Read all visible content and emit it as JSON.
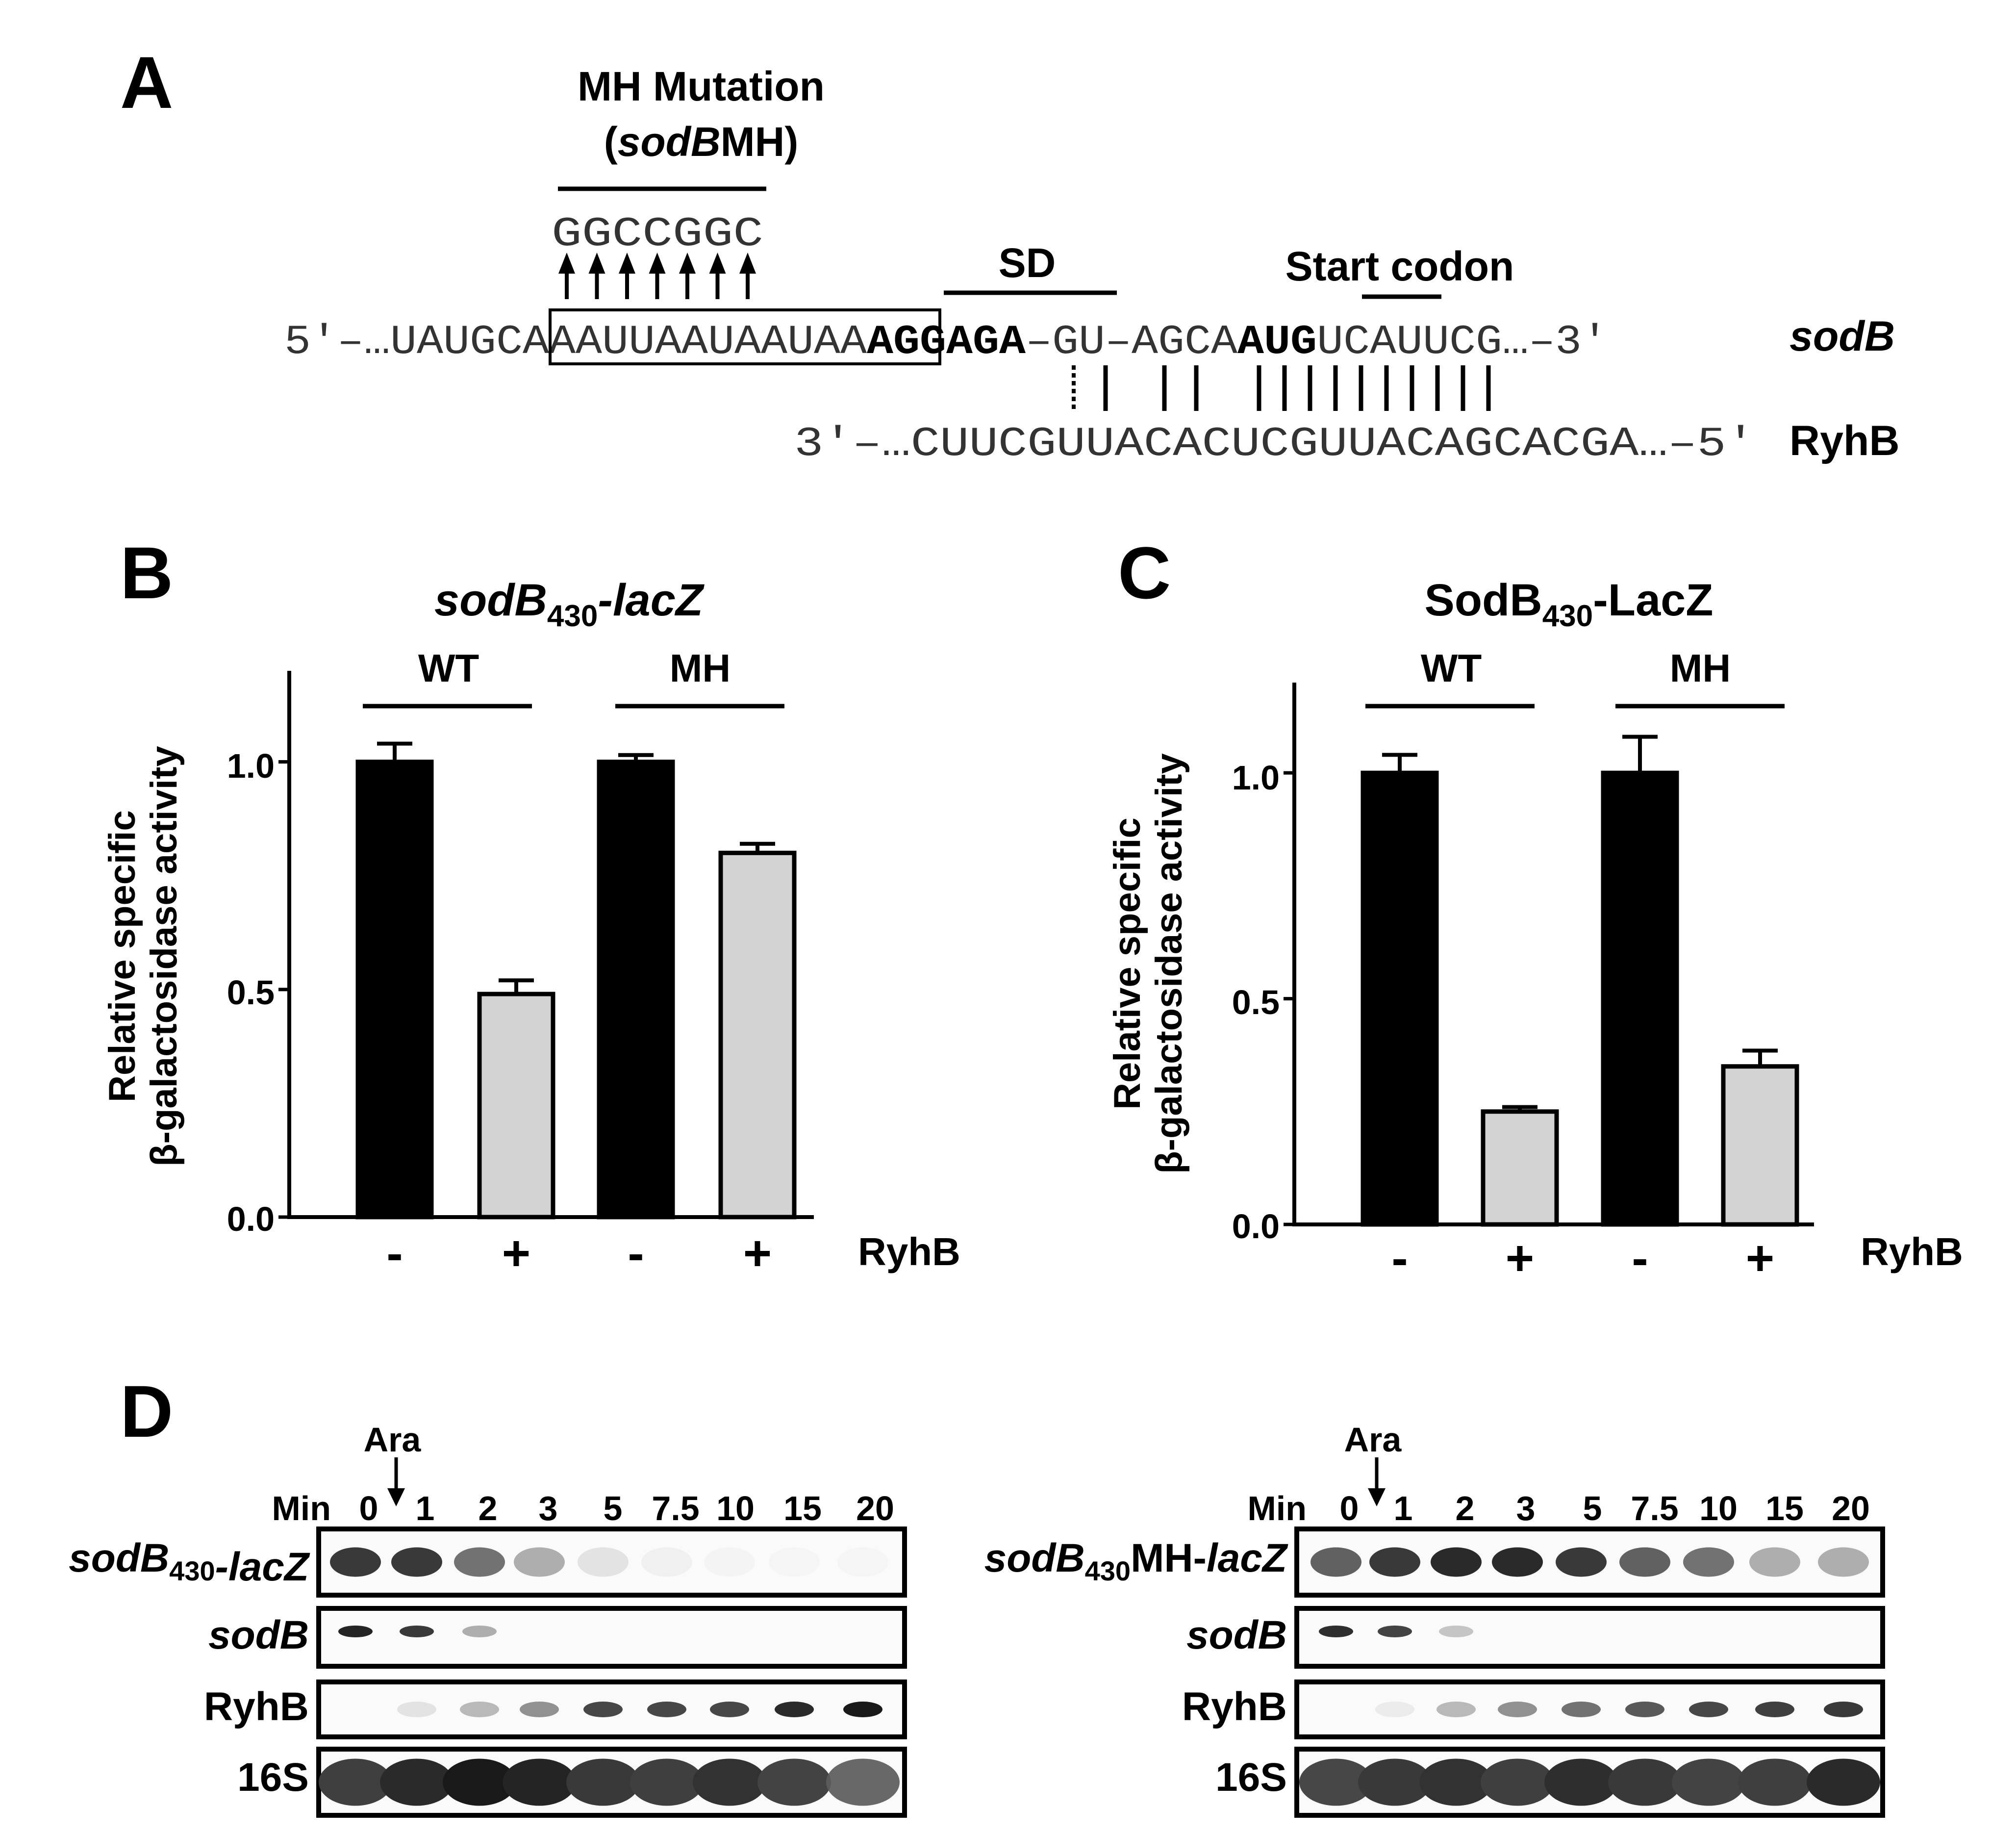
{
  "panels": {
    "A": {
      "letter": "A",
      "mutation_title_line1": "MH Mutation",
      "mutation_title_line2_italic": "sodB",
      "mutation_title_line2_rest": "MH",
      "mutation_title_paren_open": "(",
      "mutation_title_paren_close": ")",
      "mutation_bases": "GGCCGGC",
      "sd_label": "SD",
      "start_codon_label": "Start codon",
      "sodB_seq": {
        "prefix": "5′–…UAUGC",
        "boxed": "AAAUUAAUAAUAA",
        "sd": "AGGAGA",
        "mid": "–GU–AGCA",
        "start": "AUG",
        "suffix": "UCAUUCG…–3′"
      },
      "sodB_name": "sodB",
      "ryhB_seq": "3′–…CUUCGUUACACUCGUUACAGCACGA…–5′",
      "ryhB_name": "RyhB"
    },
    "B": {
      "letter": "B",
      "title_italic": "sodB",
      "title_sub": "430",
      "title_suffix": "-lacZ",
      "group_labels": [
        "WT",
        "MH"
      ],
      "ylabel_line1": "Relative specific",
      "ylabel_line2": "β-galactosidase activity",
      "ticks": [
        "0.0",
        "0.5",
        "1.0"
      ],
      "signs": [
        "-",
        "+",
        "-",
        "+"
      ],
      "ryhb_label": "RyhB"
    },
    "C": {
      "letter": "C",
      "title_main": "SodB",
      "title_sub": "430",
      "title_suffix": "-LacZ",
      "group_labels": [
        "WT",
        "MH"
      ],
      "ylabel_line1": "Relative specific",
      "ylabel_line2": "β-galactosidase activity",
      "ticks": [
        "0.0",
        "0.5",
        "1.0"
      ],
      "signs": [
        "-",
        "+",
        "-",
        "+"
      ],
      "ryhb_label": "RyhB"
    },
    "D": {
      "letter": "D",
      "ara_label": "Ara",
      "min_label": "Min",
      "time_points": [
        "0",
        "1",
        "2",
        "3",
        "5",
        "7.5",
        "10",
        "15",
        "20"
      ],
      "left": {
        "row1": {
          "italic": "sodB",
          "sub": "430",
          "mid": "",
          "tail": "-lacZ"
        },
        "rows": [
          "sodB",
          "RyhB",
          "16S"
        ],
        "intensities": {
          "reporter": [
            0.85,
            0.85,
            0.65,
            0.45,
            0.18,
            0.07,
            0.03,
            0.02,
            0.02
          ],
          "sodB": [
            0.95,
            0.85,
            0.45,
            0.0,
            0.0,
            0.0,
            0.0,
            0.0,
            0.0
          ],
          "ryhB": [
            0.0,
            0.18,
            0.4,
            0.55,
            0.78,
            0.78,
            0.78,
            0.92,
            1.0
          ],
          "s16": [
            0.82,
            0.92,
            1.0,
            0.95,
            0.85,
            0.82,
            0.88,
            0.8,
            0.68
          ]
        }
      },
      "right": {
        "row1": {
          "italic": "sodB",
          "sub": "430",
          "mid": "MH-",
          "tail": "lacZ"
        },
        "rows": [
          "sodB",
          "RyhB",
          "16S"
        ],
        "intensities": {
          "reporter": [
            0.7,
            0.85,
            0.92,
            0.92,
            0.85,
            0.7,
            0.65,
            0.45,
            0.45
          ],
          "sodB": [
            0.9,
            0.8,
            0.35,
            0.0,
            0.0,
            0.0,
            0.0,
            0.0,
            0.0
          ],
          "ryhB": [
            0.0,
            0.12,
            0.4,
            0.55,
            0.65,
            0.72,
            0.78,
            0.82,
            0.85
          ],
          "s16": [
            0.78,
            0.85,
            0.88,
            0.82,
            0.9,
            0.85,
            0.8,
            0.82,
            0.92
          ]
        }
      }
    }
  },
  "chart_data": [
    {
      "type": "bar",
      "panel": "B",
      "title": "sodB430-lacZ",
      "ylabel": "Relative specific β-galactosidase activity",
      "ylim": [
        0,
        1.2
      ],
      "yticks": [
        0.0,
        0.5,
        1.0
      ],
      "groups": [
        "WT",
        "MH"
      ],
      "categories": [
        "WT -",
        "WT +",
        "MH -",
        "MH +"
      ],
      "values": [
        1.0,
        0.49,
        1.0,
        0.8
      ],
      "errors": [
        0.04,
        0.03,
        0.015,
        0.02
      ],
      "ryhB": [
        "-",
        "+",
        "-",
        "+"
      ],
      "colors": [
        "#000000",
        "#d3d3d3",
        "#000000",
        "#d3d3d3"
      ]
    },
    {
      "type": "bar",
      "panel": "C",
      "title": "SodB430-LacZ",
      "ylabel": "Relative specific β-galactosidase activity",
      "ylim": [
        0,
        1.2
      ],
      "yticks": [
        0.0,
        0.5,
        1.0
      ],
      "groups": [
        "WT",
        "MH"
      ],
      "categories": [
        "WT -",
        "WT +",
        "MH -",
        "MH +"
      ],
      "values": [
        1.0,
        0.25,
        1.0,
        0.35
      ],
      "errors": [
        0.04,
        0.01,
        0.08,
        0.035
      ],
      "ryhB": [
        "-",
        "+",
        "-",
        "+"
      ],
      "colors": [
        "#000000",
        "#d3d3d3",
        "#000000",
        "#d3d3d3"
      ]
    }
  ]
}
